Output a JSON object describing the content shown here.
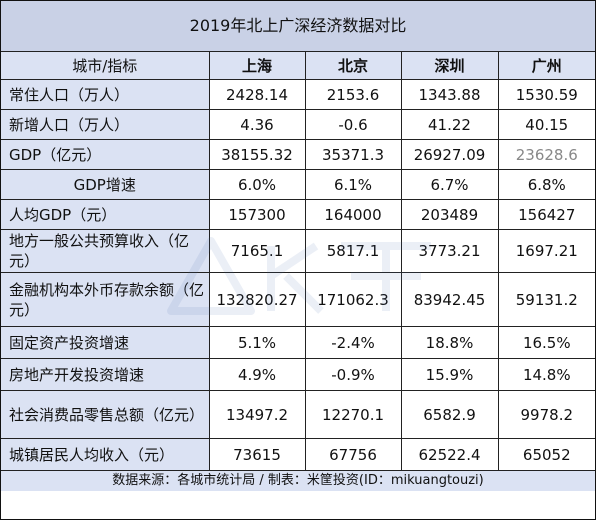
{
  "title": "2019年北上广深经济数据对比",
  "header": {
    "label_col": "城市/指标",
    "cities": [
      "上海",
      "北京",
      "深圳",
      "广州"
    ]
  },
  "rows": [
    {
      "label": "常住人口（万人）",
      "values": [
        "2428.14",
        "2153.6",
        "1343.88",
        "1530.59"
      ]
    },
    {
      "label": "新增人口（万人）",
      "values": [
        "4.36",
        "-0.6",
        "41.22",
        "40.15"
      ]
    },
    {
      "label": "GDP（亿元）",
      "values": [
        "38155.32",
        "35371.3",
        "26927.09",
        "23628.6"
      ]
    },
    {
      "label": "GDP增速",
      "values": [
        "6.0%",
        "6.1%",
        "6.7%",
        "6.8%"
      ]
    },
    {
      "label": "人均GDP（元）",
      "values": [
        "157300",
        "164000",
        "203489",
        "156427"
      ]
    },
    {
      "label": "地方一般公共预算收入（亿元）",
      "values": [
        "7165.1",
        "5817.1",
        "3773.21",
        "1697.21"
      ]
    },
    {
      "label": "金融机构本外币存款余额（亿元）",
      "values": [
        "132820.27",
        "171062.3",
        "83942.45",
        "59131.2"
      ]
    },
    {
      "label": "固定资产投资增速",
      "values": [
        "5.1%",
        "-2.4%",
        "18.8%",
        "16.5%"
      ]
    },
    {
      "label": "房地产开发投资增速",
      "values": [
        "4.9%",
        "-0.9%",
        "15.9%",
        "14.8%"
      ]
    },
    {
      "label": "社会消费品零售总额（亿元）",
      "values": [
        "13497.2",
        "12270.1",
        "6582.9",
        "9978.2"
      ]
    },
    {
      "label": "城镇居民人均收入（元）",
      "values": [
        "73615",
        "67756",
        "62522.4",
        "65052"
      ]
    }
  ],
  "source": "数据来源：各城市统计局 / 制表：米筐投资(ID：mikuangtouzi)",
  "colors": {
    "title_bg": "#c9d1e6",
    "header_bg": "#dbe2f3",
    "border": "#222222"
  }
}
